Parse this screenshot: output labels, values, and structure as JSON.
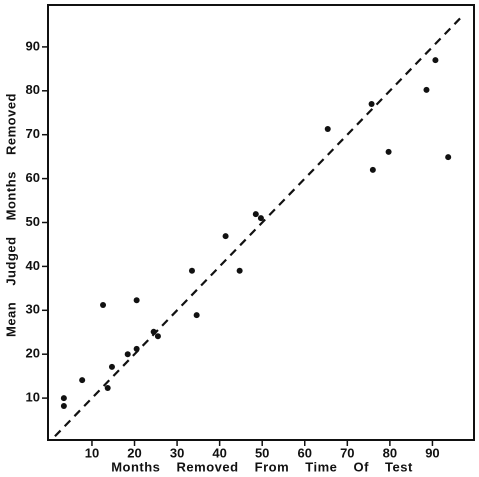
{
  "chart_data": {
    "type": "scatter",
    "x_label": "Months Removed From Time Of Test",
    "y_label": "Mean Judged Months Removed",
    "x": [
      3.4,
      3.4,
      7.7,
      12.6,
      13.7,
      14.7,
      18.4,
      20.5,
      20.5,
      24.5,
      25.5,
      33.5,
      34.6,
      41.4,
      44.7,
      48.5,
      49.7,
      65.4,
      75.7,
      76.0,
      79.7,
      88.6,
      90.7,
      93.7
    ],
    "values": [
      10.0,
      8.2,
      14.1,
      31.2,
      12.3,
      17.1,
      20.0,
      21.2,
      32.3,
      25.1,
      24.1,
      39.0,
      28.9,
      46.9,
      39.0,
      51.9,
      51.0,
      71.3,
      77.0,
      62.0,
      66.1,
      80.2,
      87.0,
      64.9
    ],
    "color": "#111111",
    "reference_line": {
      "x": [
        1.3,
        97
      ],
      "y": [
        1.3,
        97
      ]
    },
    "xlim": [
      0,
      100
    ],
    "ylim": [
      0,
      100
    ],
    "xticks": [
      10,
      20,
      30,
      40,
      50,
      60,
      70,
      80,
      90
    ],
    "yticks": [
      10,
      20,
      30,
      40,
      50,
      60,
      70,
      80,
      90
    ]
  }
}
